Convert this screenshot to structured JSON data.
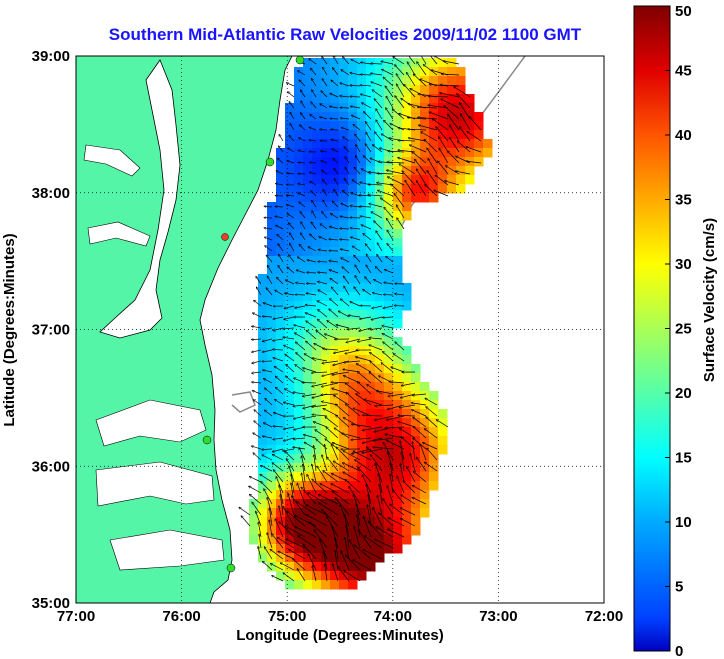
{
  "chart_data": {
    "type": "heatmap",
    "title": "Southern Mid-Atlantic Raw Velocities 2009/11/02 1100 GMT",
    "xlabel": "Longitude (Degrees:Minutes)",
    "ylabel": "Latitude (Degrees:Minutes)",
    "xlim": [
      -77,
      -72
    ],
    "ylim": [
      35,
      39
    ],
    "x_ticks": [
      "77:00",
      "76:00",
      "75:00",
      "74:00",
      "73:00",
      "72:00"
    ],
    "y_ticks": [
      "39:00",
      "38:00",
      "37:00",
      "36:00",
      "35:00"
    ],
    "grid": true,
    "grid_style": "dotted",
    "colorbar": {
      "label": "Surface Velocity (cm/s)",
      "range": [
        0,
        50
      ],
      "ticks": [
        "50",
        "45",
        "40",
        "35",
        "30",
        "25",
        "20",
        "15",
        "10",
        "5",
        "0"
      ],
      "colormap": "jet"
    },
    "land_color": "#55f5a8",
    "arrow_color": "#000000",
    "site_marker_color": "#2fdc2f",
    "site_marker_alt_color": "#e8402a"
  }
}
